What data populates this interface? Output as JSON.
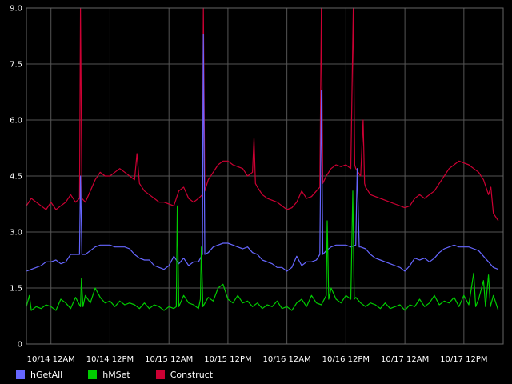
{
  "chart_data": {
    "type": "line",
    "title": "",
    "xlabel": "",
    "ylabel": "",
    "ylim": [
      0,
      9.0
    ],
    "y_ticks": [
      "0",
      "1.5",
      "3.0",
      "4.5",
      "6.0",
      "7.5",
      "9.0"
    ],
    "y_tick_values": [
      0,
      1.5,
      3.0,
      4.5,
      6.0,
      7.5,
      9.0
    ],
    "x_ticks": [
      "10/14 12AM",
      "10/14 12PM",
      "10/15 12AM",
      "10/15 12PM",
      "10/16 12AM",
      "10/16 12PM",
      "10/17 12AM",
      "10/17 12PM"
    ],
    "x_tick_hours": [
      0,
      12,
      24,
      36,
      48,
      60,
      72,
      84
    ],
    "x_hours_range": [
      -5,
      92
    ],
    "x_unit": "hours after 10/14 12AM",
    "grid": true,
    "legend_position": "bottom-left",
    "background": "#000000",
    "grid_color": "#555555",
    "series": [
      {
        "name": "hGetAll",
        "color": "#6666ff",
        "points": [
          [
            -5,
            1.95
          ],
          [
            -4,
            2.0
          ],
          [
            -3,
            2.05
          ],
          [
            -2,
            2.1
          ],
          [
            -1,
            2.2
          ],
          [
            0,
            2.2
          ],
          [
            1,
            2.25
          ],
          [
            2,
            2.15
          ],
          [
            3,
            2.2
          ],
          [
            4,
            2.4
          ],
          [
            5,
            2.4
          ],
          [
            5.8,
            2.4
          ],
          [
            6,
            4.5
          ],
          [
            6.3,
            2.4
          ],
          [
            7,
            2.4
          ],
          [
            8,
            2.5
          ],
          [
            9,
            2.6
          ],
          [
            10,
            2.65
          ],
          [
            11,
            2.65
          ],
          [
            12,
            2.65
          ],
          [
            13,
            2.6
          ],
          [
            14,
            2.6
          ],
          [
            15,
            2.6
          ],
          [
            16,
            2.55
          ],
          [
            17,
            2.4
          ],
          [
            18,
            2.3
          ],
          [
            19,
            2.25
          ],
          [
            20,
            2.25
          ],
          [
            21,
            2.1
          ],
          [
            22,
            2.05
          ],
          [
            23,
            2.0
          ],
          [
            24,
            2.1
          ],
          [
            25,
            2.35
          ],
          [
            26,
            2.15
          ],
          [
            27,
            2.3
          ],
          [
            28,
            2.1
          ],
          [
            29,
            2.2
          ],
          [
            30,
            2.2
          ],
          [
            30.8,
            2.4
          ],
          [
            31,
            8.3
          ],
          [
            31.3,
            2.4
          ],
          [
            32,
            2.45
          ],
          [
            33,
            2.6
          ],
          [
            34,
            2.65
          ],
          [
            35,
            2.7
          ],
          [
            36,
            2.7
          ],
          [
            37,
            2.65
          ],
          [
            38,
            2.6
          ],
          [
            39,
            2.55
          ],
          [
            40,
            2.6
          ],
          [
            41,
            2.45
          ],
          [
            42,
            2.4
          ],
          [
            43,
            2.25
          ],
          [
            44,
            2.2
          ],
          [
            45,
            2.15
          ],
          [
            46,
            2.05
          ],
          [
            47,
            2.05
          ],
          [
            48,
            1.95
          ],
          [
            49,
            2.05
          ],
          [
            50,
            2.35
          ],
          [
            51,
            2.1
          ],
          [
            52,
            2.2
          ],
          [
            53,
            2.2
          ],
          [
            54,
            2.25
          ],
          [
            54.7,
            2.4
          ],
          [
            55,
            6.8
          ],
          [
            55.3,
            2.4
          ],
          [
            56,
            2.5
          ],
          [
            57,
            2.6
          ],
          [
            58,
            2.65
          ],
          [
            59,
            2.65
          ],
          [
            60,
            2.65
          ],
          [
            61,
            2.6
          ],
          [
            62,
            2.65
          ],
          [
            62.3,
            4.7
          ],
          [
            62.7,
            2.6
          ],
          [
            63,
            2.6
          ],
          [
            64,
            2.55
          ],
          [
            65,
            2.4
          ],
          [
            66,
            2.3
          ],
          [
            67,
            2.25
          ],
          [
            68,
            2.2
          ],
          [
            69,
            2.15
          ],
          [
            70,
            2.1
          ],
          [
            71,
            2.05
          ],
          [
            72,
            1.95
          ],
          [
            73,
            2.1
          ],
          [
            74,
            2.3
          ],
          [
            75,
            2.25
          ],
          [
            76,
            2.3
          ],
          [
            77,
            2.2
          ],
          [
            78,
            2.3
          ],
          [
            79,
            2.45
          ],
          [
            80,
            2.55
          ],
          [
            81,
            2.6
          ],
          [
            82,
            2.65
          ],
          [
            83,
            2.6
          ],
          [
            84,
            2.6
          ],
          [
            85,
            2.6
          ],
          [
            86,
            2.55
          ],
          [
            87,
            2.5
          ],
          [
            88,
            2.35
          ],
          [
            89,
            2.2
          ],
          [
            90,
            2.05
          ],
          [
            91,
            2.0
          ]
        ]
      },
      {
        "name": "hMSet",
        "color": "#00cc00",
        "points": [
          [
            -5,
            1.0
          ],
          [
            -4.4,
            1.3
          ],
          [
            -4,
            0.9
          ],
          [
            -3,
            1.0
          ],
          [
            -2,
            0.95
          ],
          [
            -1,
            1.05
          ],
          [
            0,
            1.0
          ],
          [
            1,
            0.9
          ],
          [
            2,
            1.2
          ],
          [
            3,
            1.1
          ],
          [
            4,
            0.95
          ],
          [
            5,
            1.25
          ],
          [
            6,
            1.0
          ],
          [
            6.2,
            1.75
          ],
          [
            6.5,
            1.0
          ],
          [
            7,
            1.3
          ],
          [
            8,
            1.1
          ],
          [
            9,
            1.5
          ],
          [
            10,
            1.25
          ],
          [
            11,
            1.1
          ],
          [
            12,
            1.15
          ],
          [
            13,
            1.0
          ],
          [
            14,
            1.15
          ],
          [
            15,
            1.05
          ],
          [
            16,
            1.1
          ],
          [
            17,
            1.05
          ],
          [
            18,
            0.95
          ],
          [
            19,
            1.1
          ],
          [
            20,
            0.95
          ],
          [
            21,
            1.05
          ],
          [
            22,
            1.0
          ],
          [
            23,
            0.9
          ],
          [
            24,
            1.0
          ],
          [
            25,
            0.95
          ],
          [
            25.5,
            1.0
          ],
          [
            25.7,
            3.7
          ],
          [
            26,
            1.0
          ],
          [
            27,
            1.3
          ],
          [
            28,
            1.1
          ],
          [
            29,
            1.05
          ],
          [
            30,
            0.95
          ],
          [
            30.4,
            1.2
          ],
          [
            30.6,
            2.6
          ],
          [
            30.9,
            1.0
          ],
          [
            32,
            1.25
          ],
          [
            33,
            1.15
          ],
          [
            34,
            1.5
          ],
          [
            35,
            1.6
          ],
          [
            36,
            1.2
          ],
          [
            37,
            1.1
          ],
          [
            38,
            1.3
          ],
          [
            39,
            1.1
          ],
          [
            40,
            1.15
          ],
          [
            41,
            1.0
          ],
          [
            42,
            1.1
          ],
          [
            43,
            0.95
          ],
          [
            44,
            1.05
          ],
          [
            45,
            1.0
          ],
          [
            46,
            1.15
          ],
          [
            47,
            0.95
          ],
          [
            48,
            1.0
          ],
          [
            49,
            0.9
          ],
          [
            50,
            1.1
          ],
          [
            51,
            1.2
          ],
          [
            52,
            1.0
          ],
          [
            53,
            1.3
          ],
          [
            54,
            1.1
          ],
          [
            55,
            1.05
          ],
          [
            56,
            1.3
          ],
          [
            56.2,
            3.3
          ],
          [
            56.5,
            1.2
          ],
          [
            57,
            1.5
          ],
          [
            58,
            1.2
          ],
          [
            59,
            1.1
          ],
          [
            60,
            1.3
          ],
          [
            61,
            1.2
          ],
          [
            61.4,
            4.1
          ],
          [
            61.7,
            1.2
          ],
          [
            62,
            1.25
          ],
          [
            63,
            1.1
          ],
          [
            64,
            1.0
          ],
          [
            65,
            1.1
          ],
          [
            66,
            1.05
          ],
          [
            67,
            0.95
          ],
          [
            68,
            1.1
          ],
          [
            69,
            0.95
          ],
          [
            70,
            1.0
          ],
          [
            71,
            1.05
          ],
          [
            72,
            0.9
          ],
          [
            73,
            1.05
          ],
          [
            74,
            1.0
          ],
          [
            75,
            1.2
          ],
          [
            76,
            1.0
          ],
          [
            77,
            1.1
          ],
          [
            78,
            1.3
          ],
          [
            79,
            1.05
          ],
          [
            80,
            1.15
          ],
          [
            81,
            1.1
          ],
          [
            82,
            1.25
          ],
          [
            83,
            1.0
          ],
          [
            84,
            1.3
          ],
          [
            85,
            1.05
          ],
          [
            86,
            1.9
          ],
          [
            86.4,
            1.0
          ],
          [
            87,
            1.2
          ],
          [
            88,
            1.7
          ],
          [
            88.4,
            1.0
          ],
          [
            89,
            1.85
          ],
          [
            89.4,
            1.0
          ],
          [
            90,
            1.3
          ],
          [
            91,
            0.9
          ]
        ]
      },
      {
        "name": "Construct",
        "color": "#cc0033",
        "points": [
          [
            -5,
            3.7
          ],
          [
            -4,
            3.9
          ],
          [
            -3,
            3.8
          ],
          [
            -2,
            3.7
          ],
          [
            -1,
            3.6
          ],
          [
            0,
            3.8
          ],
          [
            1,
            3.6
          ],
          [
            2,
            3.7
          ],
          [
            3,
            3.8
          ],
          [
            4,
            4.0
          ],
          [
            5,
            3.8
          ],
          [
            5.8,
            3.9
          ],
          [
            6,
            9.0
          ],
          [
            6.3,
            3.9
          ],
          [
            7,
            3.8
          ],
          [
            8,
            4.1
          ],
          [
            9,
            4.4
          ],
          [
            10,
            4.6
          ],
          [
            11,
            4.5
          ],
          [
            12,
            4.5
          ],
          [
            13,
            4.6
          ],
          [
            14,
            4.7
          ],
          [
            15,
            4.6
          ],
          [
            16,
            4.5
          ],
          [
            17,
            4.4
          ],
          [
            17.5,
            5.1
          ],
          [
            18,
            4.3
          ],
          [
            19,
            4.1
          ],
          [
            20,
            4.0
          ],
          [
            21,
            3.9
          ],
          [
            22,
            3.8
          ],
          [
            23,
            3.8
          ],
          [
            24,
            3.75
          ],
          [
            25,
            3.7
          ],
          [
            26,
            4.1
          ],
          [
            27,
            4.2
          ],
          [
            28,
            3.9
          ],
          [
            29,
            3.8
          ],
          [
            30,
            3.9
          ],
          [
            30.8,
            4.0
          ],
          [
            31,
            9.0
          ],
          [
            31.3,
            4.1
          ],
          [
            32,
            4.4
          ],
          [
            33,
            4.6
          ],
          [
            34,
            4.8
          ],
          [
            35,
            4.9
          ],
          [
            36,
            4.9
          ],
          [
            37,
            4.8
          ],
          [
            38,
            4.75
          ],
          [
            39,
            4.7
          ],
          [
            40,
            4.5
          ],
          [
            41,
            4.6
          ],
          [
            41.3,
            5.5
          ],
          [
            41.6,
            4.3
          ],
          [
            42,
            4.2
          ],
          [
            43,
            4.0
          ],
          [
            44,
            3.9
          ],
          [
            45,
            3.85
          ],
          [
            46,
            3.8
          ],
          [
            47,
            3.7
          ],
          [
            48,
            3.6
          ],
          [
            49,
            3.65
          ],
          [
            50,
            3.8
          ],
          [
            51,
            4.1
          ],
          [
            52,
            3.9
          ],
          [
            53,
            3.95
          ],
          [
            54,
            4.1
          ],
          [
            54.7,
            4.2
          ],
          [
            55,
            9.0
          ],
          [
            55.3,
            4.3
          ],
          [
            56,
            4.5
          ],
          [
            57,
            4.7
          ],
          [
            58,
            4.8
          ],
          [
            59,
            4.75
          ],
          [
            60,
            4.8
          ],
          [
            61,
            4.7
          ],
          [
            61.5,
            9.0
          ],
          [
            61.8,
            4.8
          ],
          [
            62,
            4.7
          ],
          [
            63,
            4.5
          ],
          [
            63.5,
            6.0
          ],
          [
            63.8,
            4.3
          ],
          [
            64,
            4.2
          ],
          [
            65,
            4.0
          ],
          [
            66,
            3.95
          ],
          [
            67,
            3.9
          ],
          [
            68,
            3.85
          ],
          [
            69,
            3.8
          ],
          [
            70,
            3.75
          ],
          [
            71,
            3.7
          ],
          [
            72,
            3.65
          ],
          [
            73,
            3.7
          ],
          [
            74,
            3.9
          ],
          [
            75,
            4.0
          ],
          [
            76,
            3.9
          ],
          [
            77,
            4.0
          ],
          [
            78,
            4.1
          ],
          [
            79,
            4.3
          ],
          [
            80,
            4.5
          ],
          [
            81,
            4.7
          ],
          [
            82,
            4.8
          ],
          [
            83,
            4.9
          ],
          [
            84,
            4.85
          ],
          [
            85,
            4.8
          ],
          [
            86,
            4.7
          ],
          [
            87,
            4.6
          ],
          [
            88,
            4.4
          ],
          [
            89,
            4.0
          ],
          [
            89.5,
            4.2
          ],
          [
            90,
            3.5
          ],
          [
            91,
            3.3
          ]
        ]
      }
    ]
  }
}
